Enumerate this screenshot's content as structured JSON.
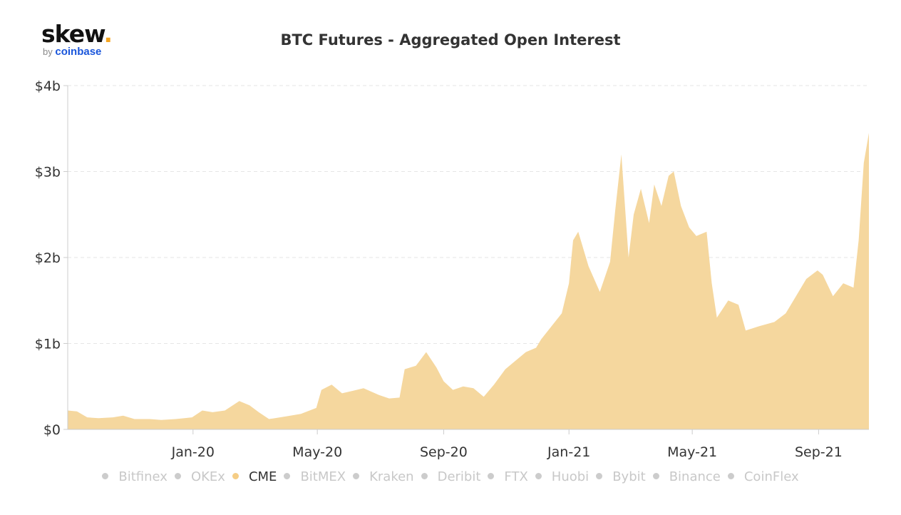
{
  "logo": {
    "brand": "skew",
    "by": "by",
    "company": "coinbase"
  },
  "colors": {
    "area": "#f5d79e",
    "active_dot": "#f5cd85",
    "inactive": "#c8c8c8",
    "grid": "#e6e6e6",
    "axis": "#cccccc",
    "text": "#333333"
  },
  "chart_data": {
    "type": "area",
    "title": "BTC Futures - Aggregated Open Interest",
    "xlabel": "",
    "ylabel": "",
    "y_unit": "USD billions",
    "ylim": [
      0,
      4
    ],
    "yticks": [
      0,
      1,
      2,
      3,
      4
    ],
    "ytick_labels": [
      "$0",
      "$1b",
      "$2b",
      "$3b",
      "$4b"
    ],
    "xlim": [
      "2019-09-01",
      "2021-10-20"
    ],
    "xticks": [
      "2020-01-01",
      "2020-05-01",
      "2020-09-01",
      "2021-01-01",
      "2021-05-01",
      "2021-09-01"
    ],
    "xtick_labels": [
      "Jan-20",
      "May-20",
      "Sep-20",
      "Jan-21",
      "May-21",
      "Sep-21"
    ],
    "grid": true,
    "legend_position": "bottom",
    "legend": [
      "Bitfinex",
      "OKEx",
      "CME",
      "BitMEX",
      "Kraken",
      "Deribit",
      "FTX",
      "Huobi",
      "Bybit",
      "Binance",
      "CoinFlex"
    ],
    "active_series": "CME",
    "series": [
      {
        "name": "CME",
        "points": [
          [
            "2019-09-01",
            0.22
          ],
          [
            "2019-09-10",
            0.21
          ],
          [
            "2019-09-20",
            0.14
          ],
          [
            "2019-10-01",
            0.13
          ],
          [
            "2019-10-15",
            0.14
          ],
          [
            "2019-10-25",
            0.16
          ],
          [
            "2019-11-05",
            0.12
          ],
          [
            "2019-11-20",
            0.12
          ],
          [
            "2019-12-01",
            0.11
          ],
          [
            "2019-12-15",
            0.12
          ],
          [
            "2019-12-31",
            0.14
          ],
          [
            "2020-01-10",
            0.22
          ],
          [
            "2020-01-20",
            0.2
          ],
          [
            "2020-02-01",
            0.22
          ],
          [
            "2020-02-15",
            0.33
          ],
          [
            "2020-02-25",
            0.28
          ],
          [
            "2020-03-05",
            0.2
          ],
          [
            "2020-03-15",
            0.12
          ],
          [
            "2020-03-31",
            0.15
          ],
          [
            "2020-04-15",
            0.18
          ],
          [
            "2020-04-30",
            0.25
          ],
          [
            "2020-05-05",
            0.46
          ],
          [
            "2020-05-15",
            0.52
          ],
          [
            "2020-05-25",
            0.42
          ],
          [
            "2020-06-05",
            0.45
          ],
          [
            "2020-06-15",
            0.48
          ],
          [
            "2020-06-30",
            0.4
          ],
          [
            "2020-07-10",
            0.36
          ],
          [
            "2020-07-20",
            0.37
          ],
          [
            "2020-07-25",
            0.7
          ],
          [
            "2020-08-05",
            0.74
          ],
          [
            "2020-08-15",
            0.9
          ],
          [
            "2020-08-25",
            0.72
          ],
          [
            "2020-09-01",
            0.56
          ],
          [
            "2020-09-10",
            0.46
          ],
          [
            "2020-09-20",
            0.5
          ],
          [
            "2020-09-30",
            0.48
          ],
          [
            "2020-10-10",
            0.38
          ],
          [
            "2020-10-20",
            0.52
          ],
          [
            "2020-10-31",
            0.7
          ],
          [
            "2020-11-10",
            0.8
          ],
          [
            "2020-11-20",
            0.9
          ],
          [
            "2020-11-30",
            0.95
          ],
          [
            "2020-12-05",
            1.05
          ],
          [
            "2020-12-15",
            1.2
          ],
          [
            "2020-12-25",
            1.35
          ],
          [
            "2021-01-01",
            1.7
          ],
          [
            "2021-01-05",
            2.2
          ],
          [
            "2021-01-10",
            2.3
          ],
          [
            "2021-01-20",
            1.9
          ],
          [
            "2021-01-31",
            1.6
          ],
          [
            "2021-02-10",
            1.95
          ],
          [
            "2021-02-15",
            2.55
          ],
          [
            "2021-02-21",
            3.2
          ],
          [
            "2021-02-28",
            2.0
          ],
          [
            "2021-03-05",
            2.5
          ],
          [
            "2021-03-12",
            2.8
          ],
          [
            "2021-03-20",
            2.4
          ],
          [
            "2021-03-25",
            2.85
          ],
          [
            "2021-04-01",
            2.6
          ],
          [
            "2021-04-08",
            2.95
          ],
          [
            "2021-04-13",
            3.0
          ],
          [
            "2021-04-20",
            2.6
          ],
          [
            "2021-04-28",
            2.35
          ],
          [
            "2021-05-05",
            2.25
          ],
          [
            "2021-05-15",
            2.3
          ],
          [
            "2021-05-20",
            1.7
          ],
          [
            "2021-05-25",
            1.3
          ],
          [
            "2021-06-05",
            1.5
          ],
          [
            "2021-06-15",
            1.45
          ],
          [
            "2021-06-22",
            1.15
          ],
          [
            "2021-07-05",
            1.2
          ],
          [
            "2021-07-20",
            1.25
          ],
          [
            "2021-07-31",
            1.35
          ],
          [
            "2021-08-10",
            1.55
          ],
          [
            "2021-08-20",
            1.75
          ],
          [
            "2021-08-31",
            1.85
          ],
          [
            "2021-09-05",
            1.8
          ],
          [
            "2021-09-15",
            1.55
          ],
          [
            "2021-09-25",
            1.7
          ],
          [
            "2021-10-05",
            1.65
          ],
          [
            "2021-10-10",
            2.2
          ],
          [
            "2021-10-15",
            3.1
          ],
          [
            "2021-10-20",
            3.45
          ]
        ]
      }
    ]
  }
}
